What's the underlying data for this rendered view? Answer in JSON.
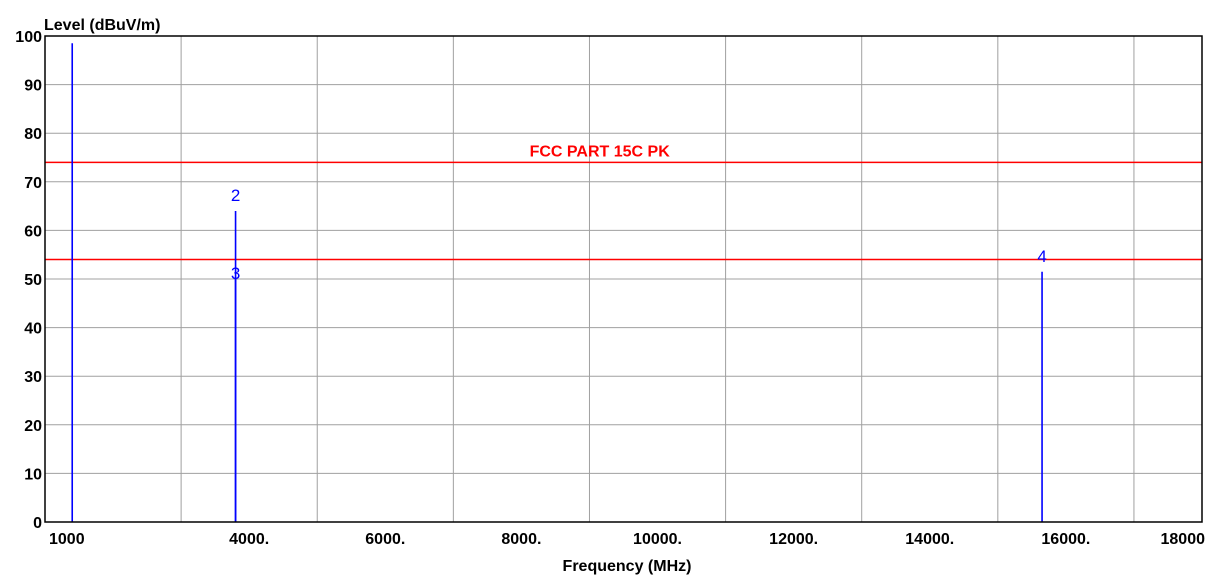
{
  "chart_data": {
    "type": "line",
    "title": "",
    "ylabel": "Level (dBuV/m)",
    "xlabel": "Frequency (MHz)",
    "xlim": [
      1000,
      18000
    ],
    "ylim": [
      0,
      100
    ],
    "grid": true,
    "x_grid_lines": [
      3000,
      5000,
      7000,
      9000,
      11000,
      13000,
      15000,
      17000
    ],
    "x_ticks": [
      {
        "value": 1000,
        "label": "1000"
      },
      {
        "value": 4000,
        "label": "4000."
      },
      {
        "value": 6000,
        "label": "6000."
      },
      {
        "value": 8000,
        "label": "8000."
      },
      {
        "value": 10000,
        "label": "10000."
      },
      {
        "value": 12000,
        "label": "12000."
      },
      {
        "value": 14000,
        "label": "14000."
      },
      {
        "value": 16000,
        "label": "16000."
      },
      {
        "value": 18000,
        "label": "18000"
      }
    ],
    "y_ticks": [
      {
        "value": 0,
        "label": "0"
      },
      {
        "value": 10,
        "label": "10"
      },
      {
        "value": 20,
        "label": "20"
      },
      {
        "value": 30,
        "label": "30"
      },
      {
        "value": 40,
        "label": "40"
      },
      {
        "value": 50,
        "label": "50"
      },
      {
        "value": 60,
        "label": "60"
      },
      {
        "value": 70,
        "label": "70"
      },
      {
        "value": 80,
        "label": "80"
      },
      {
        "value": 90,
        "label": "90"
      },
      {
        "value": 100,
        "label": "100"
      }
    ],
    "limit_lines": [
      {
        "value": 74,
        "label": "FCC PART 15C  PK",
        "label_x": 9150,
        "color": "#ff0000"
      },
      {
        "value": 54,
        "label": "",
        "color": "#ff0000"
      }
    ],
    "emissions": [
      {
        "x": 1400,
        "y": 98.5,
        "marker": "",
        "color": "#0000ff"
      },
      {
        "x": 3800,
        "y": 64,
        "marker": "2",
        "marker_y": 66,
        "color": "#0000ff"
      },
      {
        "x": 3800,
        "y": 50,
        "marker": "3",
        "marker_y": 50,
        "color": "#0000ff"
      },
      {
        "x": 15650,
        "y": 51.5,
        "marker": "4",
        "marker_y": 53.5,
        "color": "#0000ff"
      }
    ],
    "colors": {
      "grid": "#a0a0a0",
      "axis": "#000000",
      "emission": "#0000ff",
      "limit": "#ff0000"
    }
  }
}
